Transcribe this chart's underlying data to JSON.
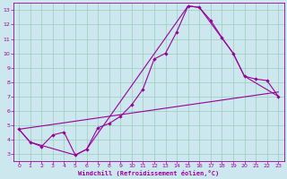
{
  "xlabel": "Windchill (Refroidissement éolien,°C)",
  "bg_color": "#cce8ee",
  "line_color": "#990099",
  "grid_color": "#99ccbb",
  "xlim": [
    -0.5,
    23.5
  ],
  "ylim": [
    2.5,
    13.5
  ],
  "xticks": [
    0,
    1,
    2,
    3,
    4,
    5,
    6,
    7,
    8,
    9,
    10,
    11,
    12,
    13,
    14,
    15,
    16,
    17,
    18,
    19,
    20,
    21,
    22,
    23
  ],
  "yticks": [
    3,
    4,
    5,
    6,
    7,
    8,
    9,
    10,
    11,
    12,
    13
  ],
  "line1_x": [
    0,
    1,
    2,
    3,
    4,
    5,
    6,
    7,
    8,
    9,
    10,
    11,
    12,
    13,
    14,
    15,
    16,
    17,
    18,
    19,
    20,
    21,
    22,
    23
  ],
  "line1_y": [
    4.7,
    3.8,
    3.5,
    4.3,
    4.5,
    2.9,
    3.3,
    4.8,
    5.1,
    5.6,
    6.4,
    7.5,
    9.6,
    10.0,
    11.5,
    13.3,
    13.2,
    12.3,
    11.1,
    10.0,
    8.4,
    8.2,
    8.1,
    7.0
  ],
  "line2_x": [
    0,
    23
  ],
  "line2_y": [
    4.7,
    7.3
  ],
  "line3_x": [
    0,
    1,
    5,
    6,
    15,
    16,
    19,
    20,
    23
  ],
  "line3_y": [
    4.7,
    3.8,
    2.9,
    3.3,
    13.3,
    13.2,
    10.0,
    8.4,
    7.0
  ]
}
